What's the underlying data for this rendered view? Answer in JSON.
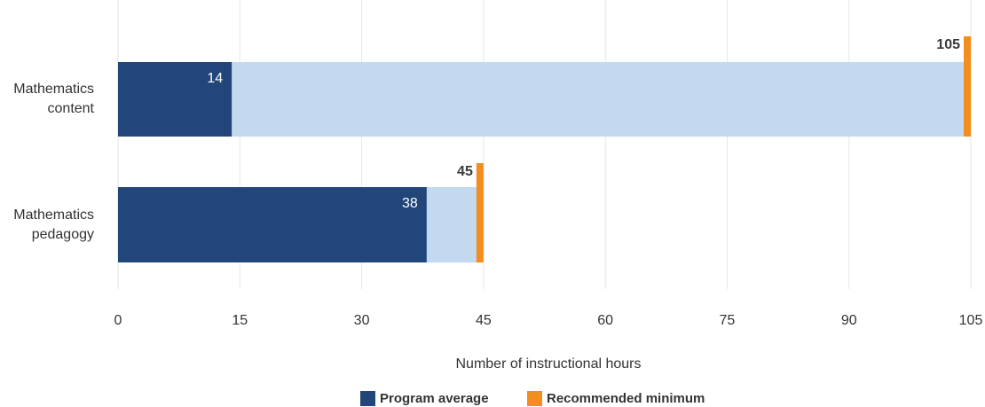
{
  "chart_data": {
    "type": "bar",
    "orientation": "horizontal",
    "categories": [
      "Mathematics content",
      "Mathematics pedagogy"
    ],
    "series": [
      {
        "name": "Program average",
        "color": "#22467a",
        "values": [
          14,
          38
        ]
      },
      {
        "name": "Recommended minimum",
        "color": "#f28e1e",
        "values": [
          105,
          45
        ]
      }
    ],
    "xlabel": "Number of instructional hours",
    "xlim": [
      0,
      105
    ],
    "xticks": [
      0,
      15,
      30,
      45,
      60,
      75,
      90,
      105
    ],
    "grid": true,
    "legend": "bottom"
  }
}
